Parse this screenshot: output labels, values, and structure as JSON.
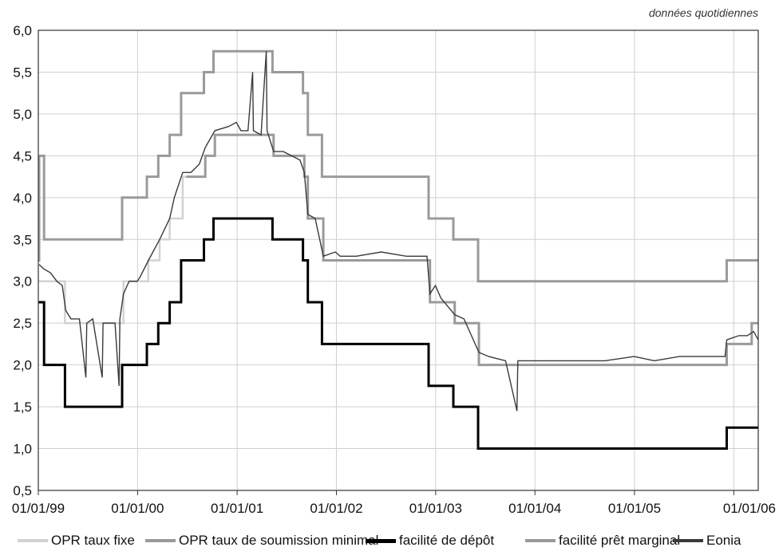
{
  "chart_data": {
    "type": "line",
    "note": "données quotidiennes",
    "ylim": [
      0.5,
      6.0
    ],
    "yticks": [
      "0,5",
      "1,0",
      "1,5",
      "2,0",
      "2,5",
      "3,0",
      "3,5",
      "4,0",
      "4,5",
      "5,0",
      "5,5",
      "6,0"
    ],
    "xlim": [
      "1999-01-01",
      "2006-04-01"
    ],
    "xticks": [
      {
        "date": "1999-01-01",
        "label": "01/01/99"
      },
      {
        "date": "2000-01-01",
        "label": "01/01/00"
      },
      {
        "date": "2001-01-01",
        "label": "01/01/01"
      },
      {
        "date": "2002-01-01",
        "label": "01/01/02"
      },
      {
        "date": "2003-01-01",
        "label": "01/01/03"
      },
      {
        "date": "2004-01-01",
        "label": "01/01/04"
      },
      {
        "date": "2005-01-01",
        "label": "01/01/05"
      },
      {
        "date": "2006-01-01",
        "label": "01/01/06"
      }
    ],
    "grid": true,
    "legend_position": "bottom",
    "series": [
      {
        "name": "OPR taux fixe",
        "color": "#d2d2d2",
        "step": true,
        "points": [
          [
            "1999-01-01",
            3.0
          ],
          [
            "1999-04-09",
            2.5
          ],
          [
            "1999-11-10",
            3.0
          ],
          [
            "2000-02-09",
            3.25
          ],
          [
            "2000-03-22",
            3.5
          ],
          [
            "2000-04-28",
            3.75
          ],
          [
            "2000-06-15",
            4.25
          ],
          [
            "2000-06-28",
            4.25
          ]
        ]
      },
      {
        "name": "OPR taux de soumission minimal",
        "color": "#9a9a9a",
        "step": true,
        "points": [
          [
            "2000-06-28",
            4.25
          ],
          [
            "2000-09-06",
            4.5
          ],
          [
            "2000-10-11",
            4.75
          ],
          [
            "2001-05-15",
            4.5
          ],
          [
            "2001-09-05",
            4.25
          ],
          [
            "2001-09-18",
            3.75
          ],
          [
            "2001-11-14",
            3.25
          ],
          [
            "2002-12-11",
            2.75
          ],
          [
            "2003-03-12",
            2.5
          ],
          [
            "2003-06-09",
            2.0
          ],
          [
            "2005-12-06",
            2.25
          ],
          [
            "2006-03-08",
            2.5
          ],
          [
            "2006-04-01",
            2.5
          ]
        ]
      },
      {
        "name": "facilité de dépôt",
        "color": "#000000",
        "step": true,
        "points": [
          [
            "1999-01-01",
            2.75
          ],
          [
            "1999-01-22",
            2.0
          ],
          [
            "1999-04-09",
            1.5
          ],
          [
            "1999-11-05",
            2.0
          ],
          [
            "2000-02-04",
            2.25
          ],
          [
            "2000-03-17",
            2.5
          ],
          [
            "2000-04-28",
            2.75
          ],
          [
            "2000-06-09",
            3.25
          ],
          [
            "2000-09-01",
            3.5
          ],
          [
            "2000-10-06",
            3.75
          ],
          [
            "2001-05-11",
            3.5
          ],
          [
            "2001-08-31",
            3.25
          ],
          [
            "2001-09-18",
            2.75
          ],
          [
            "2001-11-09",
            2.25
          ],
          [
            "2002-12-06",
            1.75
          ],
          [
            "2003-03-07",
            1.5
          ],
          [
            "2003-06-06",
            1.0
          ],
          [
            "2005-12-06",
            1.25
          ],
          [
            "2006-04-01",
            1.25
          ]
        ]
      },
      {
        "name": "facilité prêt marginal",
        "color": "#9a9a9a",
        "step": true,
        "points": [
          [
            "1999-01-01",
            3.25
          ],
          [
            "1999-01-04",
            4.5
          ],
          [
            "1999-01-22",
            3.5
          ],
          [
            "1999-11-05",
            4.0
          ],
          [
            "2000-02-04",
            4.25
          ],
          [
            "2000-03-17",
            4.5
          ],
          [
            "2000-04-28",
            4.75
          ],
          [
            "2000-06-09",
            5.25
          ],
          [
            "2000-09-01",
            5.5
          ],
          [
            "2000-10-06",
            5.75
          ],
          [
            "2001-05-11",
            5.5
          ],
          [
            "2001-08-31",
            5.25
          ],
          [
            "2001-09-18",
            4.75
          ],
          [
            "2001-11-09",
            4.25
          ],
          [
            "2002-12-06",
            3.75
          ],
          [
            "2003-03-07",
            3.5
          ],
          [
            "2003-06-06",
            3.0
          ],
          [
            "2005-12-06",
            3.25
          ],
          [
            "2006-04-01",
            3.25
          ]
        ]
      },
      {
        "name": "Eonia",
        "color": "#3a3a3a",
        "step": false,
        "points": [
          [
            "1999-01-04",
            3.2
          ],
          [
            "1999-01-20",
            3.15
          ],
          [
            "1999-02-15",
            3.1
          ],
          [
            "1999-03-10",
            3.0
          ],
          [
            "1999-03-30",
            2.95
          ],
          [
            "1999-04-12",
            2.65
          ],
          [
            "1999-05-01",
            2.55
          ],
          [
            "1999-06-01",
            2.55
          ],
          [
            "1999-06-25",
            1.85
          ],
          [
            "1999-06-28",
            2.5
          ],
          [
            "1999-07-20",
            2.55
          ],
          [
            "1999-08-24",
            1.85
          ],
          [
            "1999-08-27",
            2.5
          ],
          [
            "1999-09-20",
            2.5
          ],
          [
            "1999-10-10",
            2.5
          ],
          [
            "1999-10-25",
            1.75
          ],
          [
            "1999-10-28",
            2.55
          ],
          [
            "1999-11-10",
            2.85
          ],
          [
            "1999-12-01",
            3.0
          ],
          [
            "1999-12-31",
            3.0
          ],
          [
            "2000-01-10",
            3.05
          ],
          [
            "2000-02-10",
            3.25
          ],
          [
            "2000-03-22",
            3.5
          ],
          [
            "2000-04-28",
            3.75
          ],
          [
            "2000-05-15",
            4.0
          ],
          [
            "2000-06-15",
            4.3
          ],
          [
            "2000-07-15",
            4.3
          ],
          [
            "2000-08-15",
            4.4
          ],
          [
            "2000-09-06",
            4.6
          ],
          [
            "2000-10-11",
            4.8
          ],
          [
            "2000-12-01",
            4.85
          ],
          [
            "2000-12-29",
            4.9
          ],
          [
            "2001-01-15",
            4.8
          ],
          [
            "2001-02-10",
            4.8
          ],
          [
            "2001-02-27",
            5.5
          ],
          [
            "2001-03-02",
            4.8
          ],
          [
            "2001-03-30",
            4.75
          ],
          [
            "2001-04-18",
            5.75
          ],
          [
            "2001-04-21",
            4.8
          ],
          [
            "2001-05-15",
            4.55
          ],
          [
            "2001-06-20",
            4.55
          ],
          [
            "2001-07-20",
            4.5
          ],
          [
            "2001-08-20",
            4.45
          ],
          [
            "2001-09-05",
            4.3
          ],
          [
            "2001-09-18",
            3.8
          ],
          [
            "2001-10-15",
            3.75
          ],
          [
            "2001-11-14",
            3.3
          ],
          [
            "2001-12-28",
            3.35
          ],
          [
            "2002-01-15",
            3.3
          ],
          [
            "2002-03-15",
            3.3
          ],
          [
            "2002-06-15",
            3.35
          ],
          [
            "2002-09-15",
            3.3
          ],
          [
            "2002-11-30",
            3.3
          ],
          [
            "2002-12-11",
            2.85
          ],
          [
            "2002-12-31",
            2.95
          ],
          [
            "2003-01-20",
            2.8
          ],
          [
            "2003-03-12",
            2.6
          ],
          [
            "2003-04-15",
            2.55
          ],
          [
            "2003-06-09",
            2.15
          ],
          [
            "2003-07-15",
            2.1
          ],
          [
            "2003-09-15",
            2.05
          ],
          [
            "2003-10-27",
            1.45
          ],
          [
            "2003-10-30",
            2.05
          ],
          [
            "2003-12-31",
            2.05
          ],
          [
            "2004-03-15",
            2.05
          ],
          [
            "2004-06-15",
            2.05
          ],
          [
            "2004-09-15",
            2.05
          ],
          [
            "2004-12-31",
            2.1
          ],
          [
            "2005-03-15",
            2.05
          ],
          [
            "2005-06-15",
            2.1
          ],
          [
            "2005-09-15",
            2.1
          ],
          [
            "2005-11-30",
            2.1
          ],
          [
            "2005-12-06",
            2.3
          ],
          [
            "2006-01-20",
            2.35
          ],
          [
            "2006-02-20",
            2.35
          ],
          [
            "2006-03-15",
            2.4
          ],
          [
            "2006-04-01",
            2.3
          ]
        ]
      }
    ]
  }
}
